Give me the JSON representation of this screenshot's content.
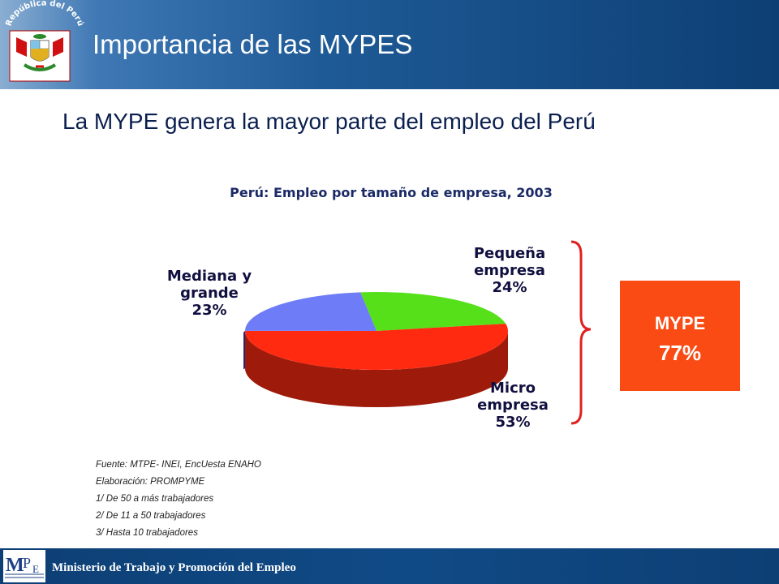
{
  "header": {
    "title": "Importancia de las MYPES",
    "emblem_text": "República del Perú"
  },
  "subtitle": "La MYPE genera la mayor parte del empleo del Perú",
  "chart_data": {
    "type": "pie",
    "title": "Perú: Empleo por tamaño de empresa, 2003",
    "slices": [
      {
        "label": "Pequeña empresa",
        "label_lines": [
          "Pequeña",
          "empresa"
        ],
        "value": 24,
        "value_label": "24%",
        "color": "#55e019"
      },
      {
        "label": "Micro empresa",
        "label_lines": [
          "Micro",
          "empresa"
        ],
        "value": 53,
        "value_label": "53%",
        "color": "#ff2a10"
      },
      {
        "label": "Mediana y grande",
        "label_lines": [
          "Mediana y",
          "grande"
        ],
        "value": 23,
        "value_label": "23%",
        "color": "#6e7cf8"
      }
    ]
  },
  "mype_box": {
    "label": "MYPE",
    "value": "77%",
    "color": "#fa4b14"
  },
  "notes": [
    "Fuente: MTPE- INEI, EncUesta ENAHO",
    "Elaboración: PROMPYME",
    "1/ De 50 a más trabajadores",
    "2/ De 11 a 50 trabajadores",
    "3/ Hasta 10 trabajadores"
  ],
  "footer": {
    "ministry": "Ministerio de Trabajo y Promoción del Empleo",
    "logo_text": "MTPE"
  }
}
